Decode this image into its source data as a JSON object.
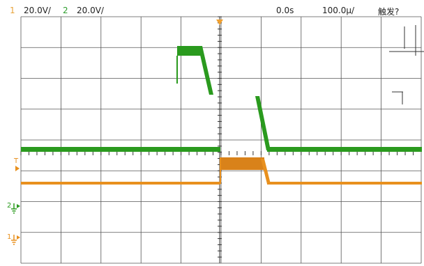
{
  "status_bar": {
    "ch1_number": "1",
    "ch1_scale": "20.0V/",
    "ch2_number": "2",
    "ch2_scale": "20.0V/",
    "time_offset": "0.0s",
    "time_scale": "100.0µ/",
    "trigger_status": "触发?"
  },
  "markers": {
    "trigger_level": "T",
    "ch2_ground": "2",
    "ch1_ground": "1"
  },
  "colors": {
    "ch1": "#e8901e",
    "ch2": "#2a9a1e",
    "grid": "#222222",
    "background": "#ffffff"
  },
  "icons": {
    "trigger_position": "orange-down-triangle",
    "trigger_level": "orange-right-triangle",
    "ground": "ground-symbol"
  }
}
